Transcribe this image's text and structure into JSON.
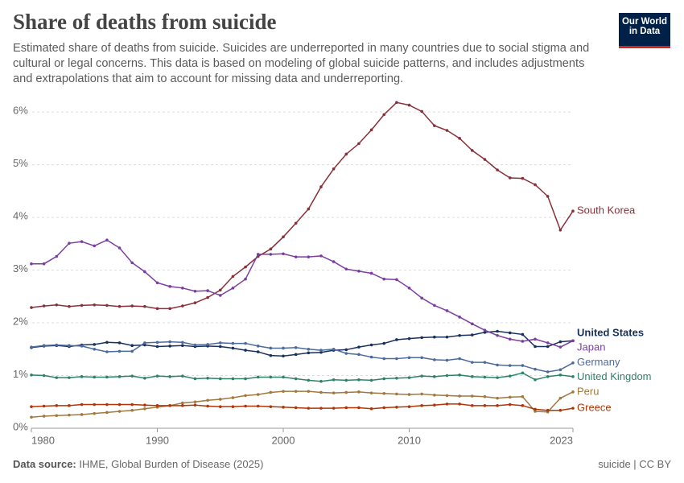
{
  "chart_data": {
    "type": "line",
    "title": "Share of deaths from suicide",
    "subtitle": "Estimated share of deaths from suicide. Suicides are underreported in many countries due to social stigma and cultural or legal concerns. This data is based on modeling of global suicide patterns, and includes adjustments and extrapolations that aim to account for missing data and underreporting.",
    "logo": [
      "Our World",
      "in Data"
    ],
    "source_label": "Data source:",
    "source": "IHME, Global Burden of Disease (2025)",
    "license": "suicide | CC BY",
    "x": [
      1980,
      1981,
      1982,
      1983,
      1984,
      1985,
      1986,
      1987,
      1988,
      1989,
      1990,
      1991,
      1992,
      1993,
      1994,
      1995,
      1996,
      1997,
      1998,
      1999,
      2000,
      2001,
      2002,
      2003,
      2004,
      2005,
      2006,
      2007,
      2008,
      2009,
      2010,
      2011,
      2012,
      2013,
      2014,
      2015,
      2016,
      2017,
      2018,
      2019,
      2020,
      2021,
      2022,
      2023
    ],
    "xlim": [
      1980,
      2023
    ],
    "xticks": [
      1980,
      1990,
      2000,
      2010,
      2023
    ],
    "ylim": [
      0,
      6.2
    ],
    "yticks": [
      {
        "value": 0,
        "label": "0%"
      },
      {
        "value": 1,
        "label": "1%"
      },
      {
        "value": 2,
        "label": "2%"
      },
      {
        "value": 3,
        "label": "3%"
      },
      {
        "value": 4,
        "label": "4%"
      },
      {
        "value": 5,
        "label": "5%"
      },
      {
        "value": 6,
        "label": "6%"
      }
    ],
    "grid": true,
    "series": [
      {
        "name": "South Korea",
        "color": "#883039",
        "values": [
          2.29,
          2.32,
          2.34,
          2.31,
          2.33,
          2.34,
          2.33,
          2.31,
          2.32,
          2.31,
          2.27,
          2.27,
          2.32,
          2.38,
          2.48,
          2.62,
          2.88,
          3.06,
          3.26,
          3.4,
          3.63,
          3.89,
          4.16,
          4.58,
          4.92,
          5.2,
          5.4,
          5.66,
          5.95,
          6.18,
          6.13,
          6.01,
          5.74,
          5.65,
          5.5,
          5.27,
          5.1,
          4.9,
          4.75,
          4.74,
          4.62,
          4.4,
          3.76,
          4.12
        ]
      },
      {
        "name": "United States",
        "color": "#18315c",
        "values": [
          1.53,
          1.56,
          1.57,
          1.55,
          1.58,
          1.59,
          1.63,
          1.62,
          1.57,
          1.58,
          1.55,
          1.56,
          1.57,
          1.55,
          1.56,
          1.55,
          1.52,
          1.48,
          1.45,
          1.38,
          1.37,
          1.4,
          1.43,
          1.44,
          1.48,
          1.49,
          1.54,
          1.58,
          1.61,
          1.68,
          1.7,
          1.72,
          1.73,
          1.73,
          1.76,
          1.77,
          1.82,
          1.84,
          1.81,
          1.78,
          1.55,
          1.55,
          1.64,
          1.66
        ]
      },
      {
        "name": "Japan",
        "color": "#7b3ea0",
        "values": [
          3.12,
          3.12,
          3.26,
          3.51,
          3.54,
          3.46,
          3.57,
          3.42,
          3.14,
          2.97,
          2.76,
          2.69,
          2.66,
          2.6,
          2.61,
          2.52,
          2.66,
          2.83,
          3.3,
          3.3,
          3.31,
          3.25,
          3.25,
          3.27,
          3.16,
          3.02,
          2.98,
          2.94,
          2.83,
          2.82,
          2.66,
          2.47,
          2.33,
          2.23,
          2.11,
          1.98,
          1.86,
          1.76,
          1.69,
          1.65,
          1.69,
          1.62,
          1.54,
          1.66
        ]
      },
      {
        "name": "Germany",
        "color": "#4c6a9c",
        "values": [
          1.54,
          1.57,
          1.58,
          1.57,
          1.56,
          1.5,
          1.45,
          1.46,
          1.46,
          1.62,
          1.63,
          1.64,
          1.63,
          1.58,
          1.59,
          1.62,
          1.61,
          1.61,
          1.56,
          1.52,
          1.52,
          1.53,
          1.5,
          1.48,
          1.5,
          1.42,
          1.4,
          1.35,
          1.32,
          1.32,
          1.34,
          1.34,
          1.3,
          1.29,
          1.32,
          1.25,
          1.25,
          1.2,
          1.19,
          1.19,
          1.12,
          1.07,
          1.11,
          1.24
        ]
      },
      {
        "name": "United Kingdom",
        "color": "#2c8465",
        "values": [
          1.01,
          1.0,
          0.96,
          0.96,
          0.98,
          0.97,
          0.97,
          0.98,
          0.99,
          0.95,
          0.99,
          0.98,
          0.99,
          0.94,
          0.95,
          0.94,
          0.94,
          0.94,
          0.97,
          0.97,
          0.97,
          0.94,
          0.91,
          0.89,
          0.92,
          0.91,
          0.92,
          0.91,
          0.94,
          0.95,
          0.96,
          0.99,
          0.98,
          1.0,
          1.01,
          0.98,
          0.97,
          0.96,
          0.99,
          1.05,
          0.92,
          0.98,
          1.01,
          0.98
        ]
      },
      {
        "name": "Peru",
        "color": "#a2783f",
        "values": [
          0.21,
          0.23,
          0.24,
          0.25,
          0.26,
          0.28,
          0.3,
          0.32,
          0.34,
          0.37,
          0.4,
          0.43,
          0.48,
          0.5,
          0.53,
          0.55,
          0.58,
          0.62,
          0.64,
          0.68,
          0.7,
          0.7,
          0.7,
          0.68,
          0.67,
          0.68,
          0.69,
          0.67,
          0.66,
          0.65,
          0.64,
          0.65,
          0.63,
          0.62,
          0.61,
          0.61,
          0.6,
          0.57,
          0.59,
          0.6,
          0.32,
          0.31,
          0.57,
          0.69
        ]
      },
      {
        "name": "Greece",
        "color": "#b13507",
        "values": [
          0.41,
          0.42,
          0.43,
          0.43,
          0.45,
          0.45,
          0.45,
          0.45,
          0.45,
          0.44,
          0.43,
          0.43,
          0.43,
          0.44,
          0.42,
          0.41,
          0.41,
          0.42,
          0.42,
          0.41,
          0.4,
          0.39,
          0.38,
          0.38,
          0.38,
          0.39,
          0.39,
          0.37,
          0.39,
          0.4,
          0.41,
          0.43,
          0.44,
          0.46,
          0.46,
          0.43,
          0.43,
          0.43,
          0.45,
          0.43,
          0.36,
          0.34,
          0.34,
          0.38
        ]
      }
    ]
  }
}
